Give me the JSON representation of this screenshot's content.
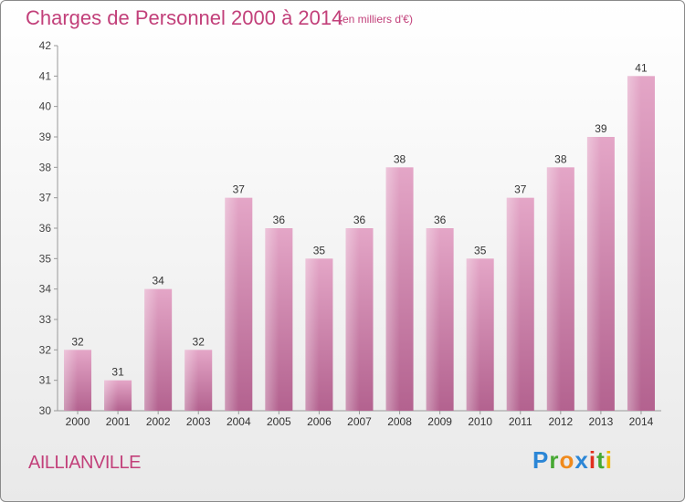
{
  "title": "Charges de Personnel 2000 à 2014",
  "subtitle": "(en milliers d'€)",
  "commune": "AILLIANVILLE",
  "logo": {
    "letters": [
      "P",
      "r",
      "o",
      "x",
      "i",
      "t",
      "i"
    ]
  },
  "colors": {
    "bar": "#d98fb5",
    "accent": "#c2407a"
  },
  "chart_data": {
    "type": "bar",
    "title": "Charges de Personnel 2000 à 2014",
    "subtitle": "(en milliers d'€)",
    "categories": [
      "2000",
      "2001",
      "2002",
      "2003",
      "2004",
      "2005",
      "2006",
      "2007",
      "2008",
      "2009",
      "2010",
      "2011",
      "2012",
      "2013",
      "2014"
    ],
    "values": [
      32,
      31,
      34,
      32,
      37,
      36,
      35,
      36,
      38,
      36,
      35,
      37,
      38,
      39,
      41
    ],
    "ylim": [
      30,
      42
    ],
    "yticks": [
      30,
      31,
      32,
      33,
      34,
      35,
      36,
      37,
      38,
      39,
      40,
      41,
      42
    ],
    "grid": false,
    "data_labels": true
  }
}
